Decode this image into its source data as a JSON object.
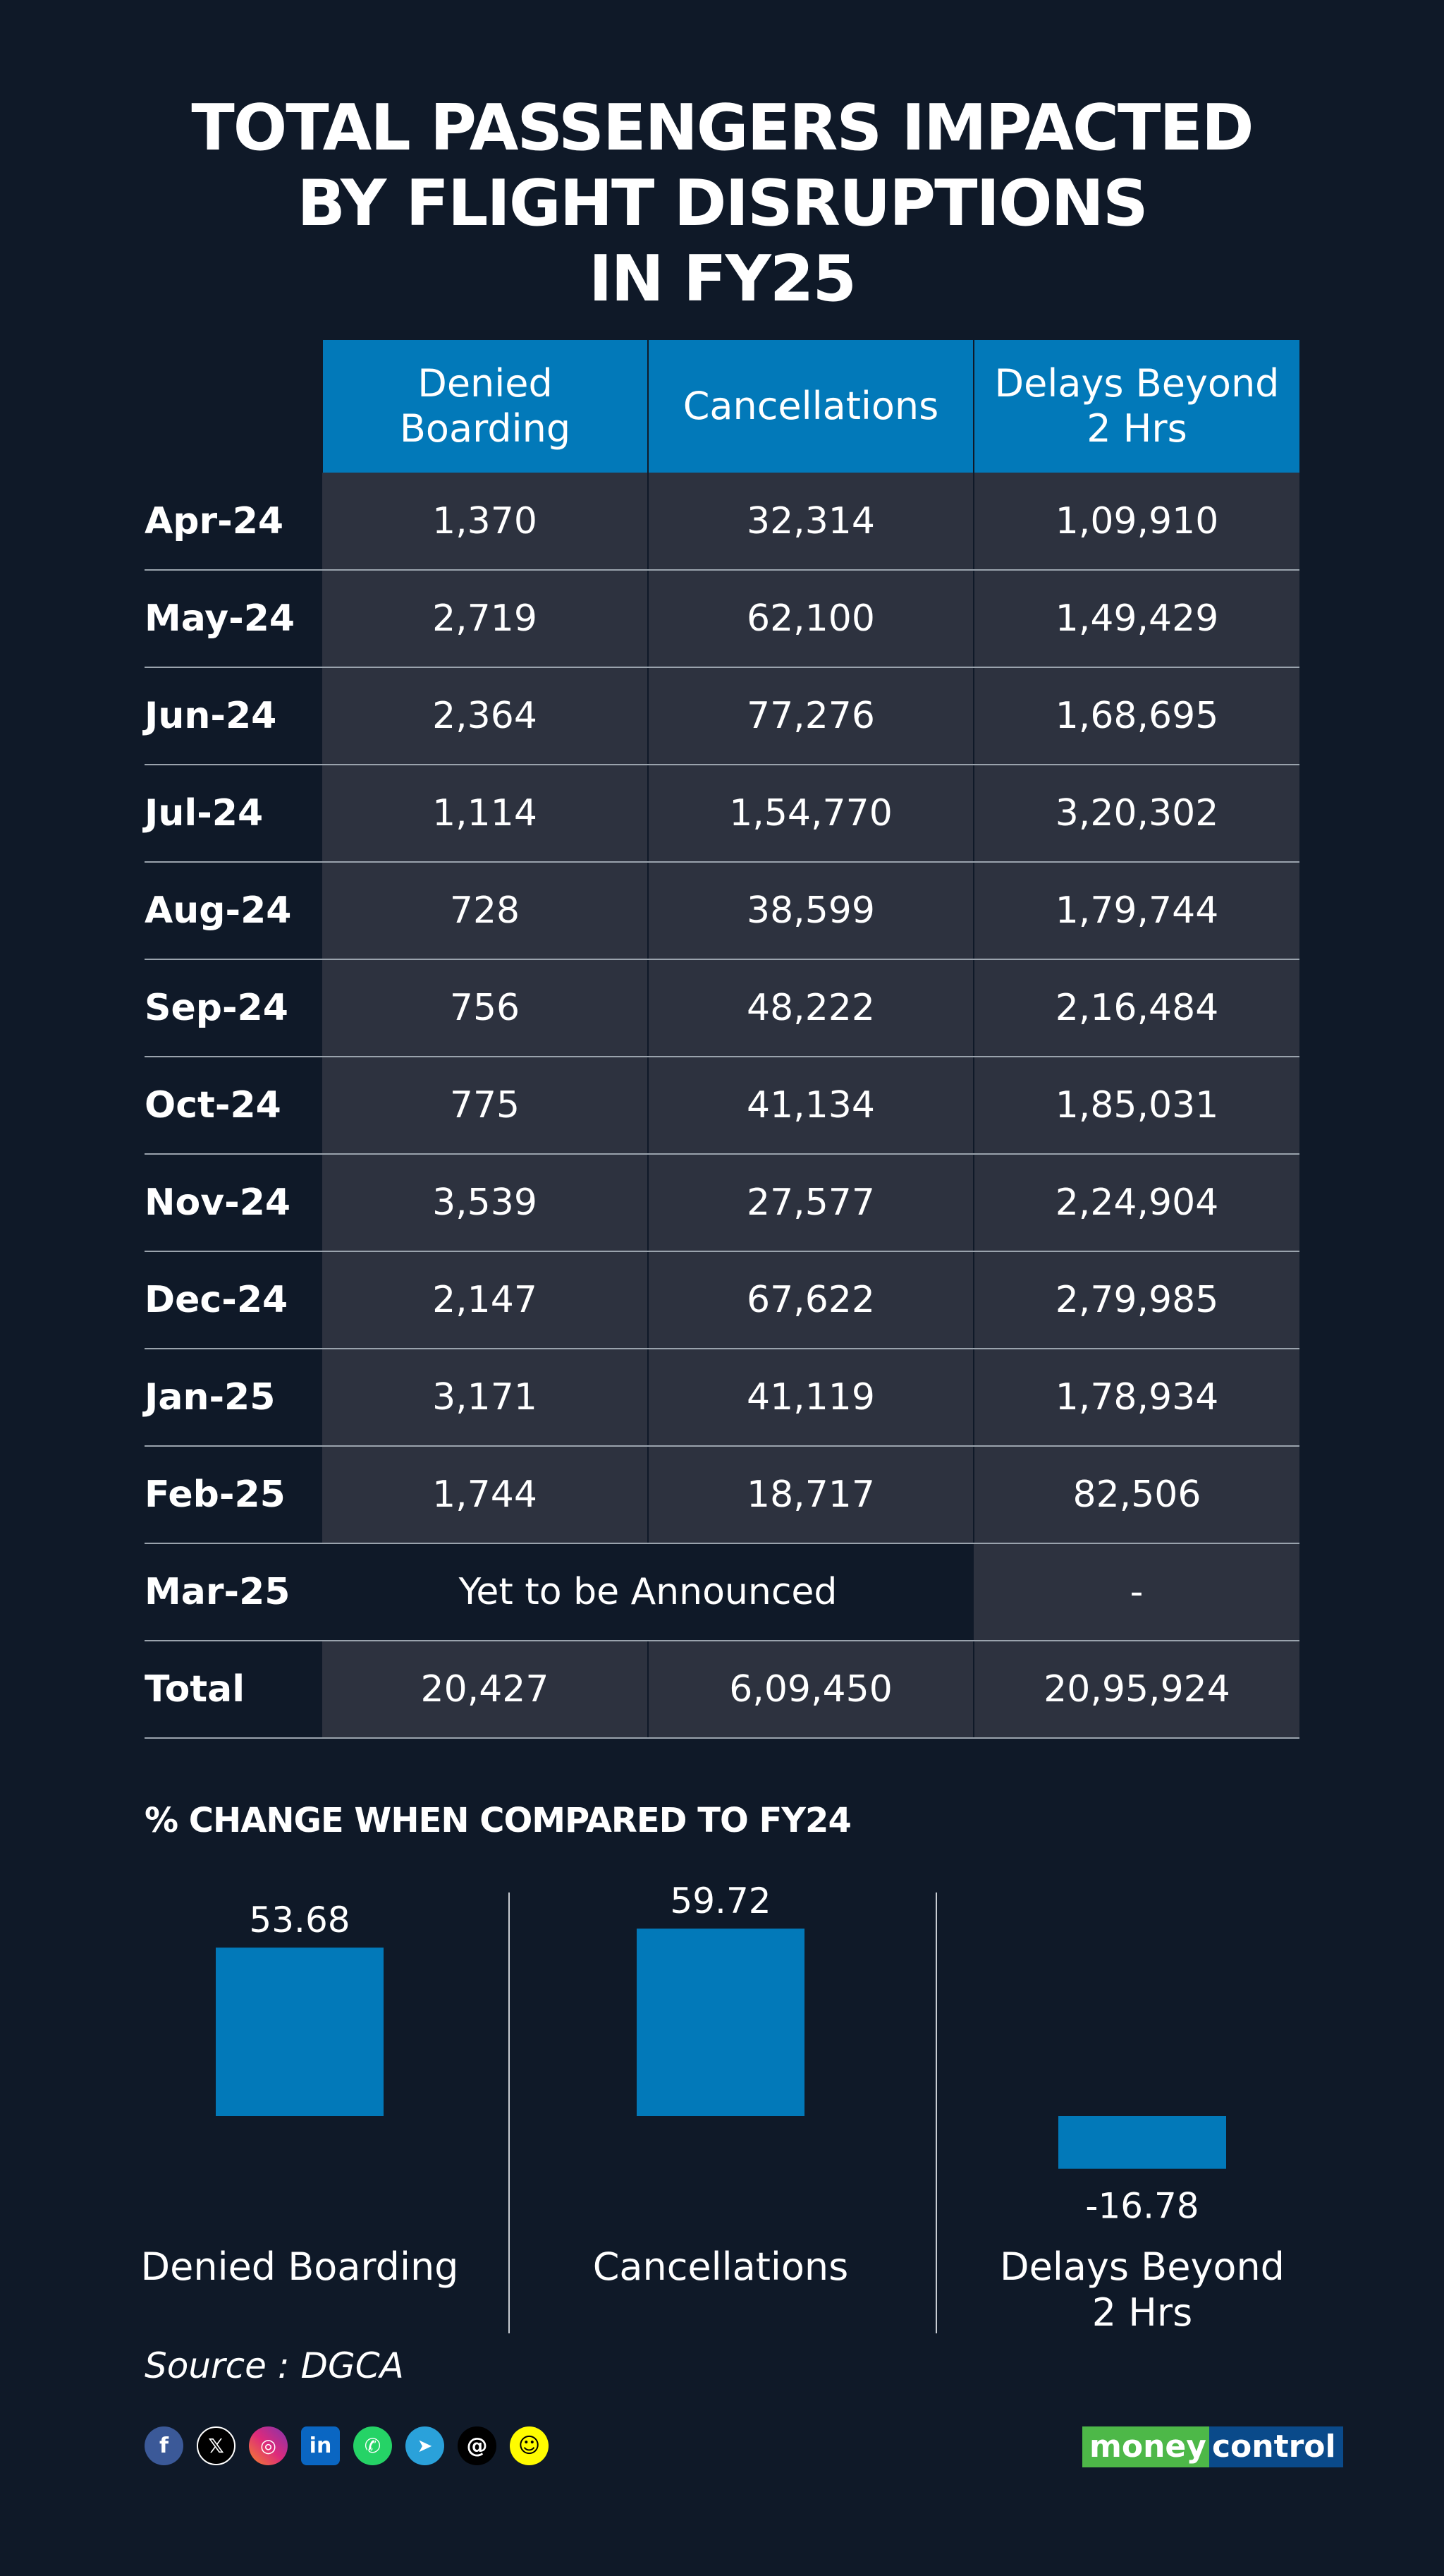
{
  "title": {
    "line1": "TOTAL PASSENGERS IMPACTED",
    "line2": "BY FLIGHT DISRUPTIONS",
    "line3": "IN FY25"
  },
  "table": {
    "columns": [
      "Denied Boarding",
      "Cancellations",
      "Delays Beyond 2 Hrs"
    ],
    "rows": [
      {
        "month": "Apr-24",
        "values": [
          "1,370",
          "32,314",
          "1,09,910"
        ]
      },
      {
        "month": "May-24",
        "values": [
          "2,719",
          "62,100",
          "1,49,429"
        ]
      },
      {
        "month": "Jun-24",
        "values": [
          "2,364",
          "77,276",
          "1,68,695"
        ]
      },
      {
        "month": "Jul-24",
        "values": [
          "1,114",
          "1,54,770",
          "3,20,302"
        ]
      },
      {
        "month": "Aug-24",
        "values": [
          "728",
          "38,599",
          "1,79,744"
        ]
      },
      {
        "month": "Sep-24",
        "values": [
          "756",
          "48,222",
          "2,16,484"
        ]
      },
      {
        "month": "Oct-24",
        "values": [
          "775",
          "41,134",
          "1,85,031"
        ]
      },
      {
        "month": "Nov-24",
        "values": [
          "3,539",
          "27,577",
          "2,24,904"
        ]
      },
      {
        "month": "Dec-24",
        "values": [
          "2,147",
          "67,622",
          "2,79,985"
        ]
      },
      {
        "month": "Jan-25",
        "values": [
          "3,171",
          "41,119",
          "1,78,934"
        ]
      },
      {
        "month": "Feb-25",
        "values": [
          "1,744",
          "18,717",
          "82,506"
        ]
      }
    ],
    "mar_row": {
      "month": "Mar-25",
      "announce": "Yet to be Announced",
      "delays": "-"
    },
    "total_row": {
      "month": "Total",
      "values": [
        "20,427",
        "6,09,450",
        "20,95,924"
      ]
    }
  },
  "section_title": "% CHANGE WHEN COMPARED TO FY24",
  "chart_data": {
    "type": "bar",
    "title": "% CHANGE WHEN COMPARED TO FY24",
    "categories": [
      "Denied Boarding",
      "Cancellations",
      "Delays Beyond 2 Hrs"
    ],
    "values": [
      53.68,
      59.72,
      -16.78
    ],
    "value_labels": [
      "53.68",
      "59.72",
      "-16.78"
    ],
    "color": "#0279b9",
    "grid": false
  },
  "source": "Source : DGCA",
  "social_icons": [
    "facebook-icon",
    "x-icon",
    "instagram-icon",
    "linkedin-icon",
    "whatsapp-icon",
    "telegram-icon",
    "threads-icon",
    "snapchat-icon"
  ],
  "brand": {
    "part1": "money",
    "part2": "control"
  },
  "colors": {
    "background": "#0f1928",
    "accent": "#0279b9",
    "cell": "#2d323f"
  }
}
